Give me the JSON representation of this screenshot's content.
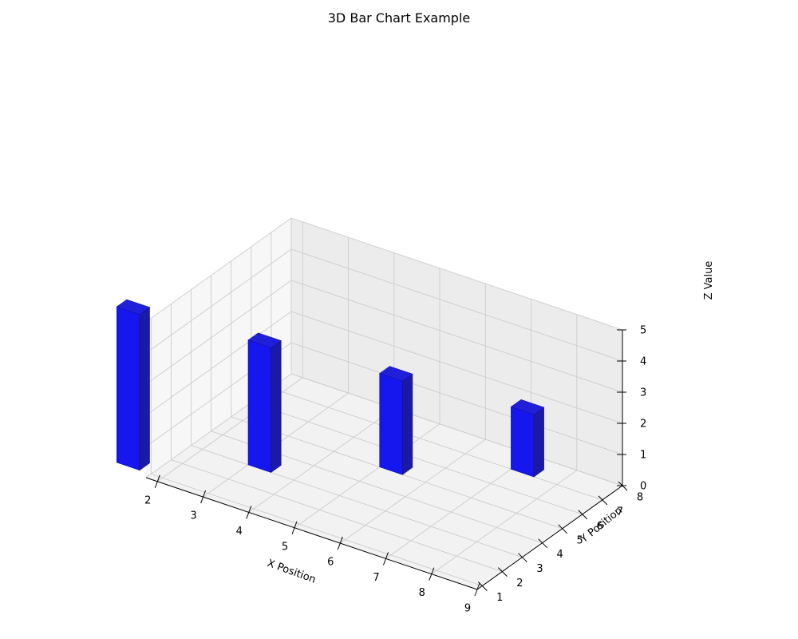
{
  "chart_data": {
    "type": "bar3d",
    "title": "3D Bar Chart Example",
    "xlabel": "X Position",
    "ylabel": "Y Position",
    "zlabel": "Z Value",
    "xlim": [
      1.75,
      9
    ],
    "ylim": [
      0.75,
      8
    ],
    "zlim": [
      0,
      5
    ],
    "xticks": [
      "2",
      "3",
      "4",
      "5",
      "6",
      "7",
      "8",
      "9"
    ],
    "yticks": [
      "1",
      "2",
      "3",
      "4",
      "5",
      "6",
      "7",
      "8"
    ],
    "zticks": [
      "0",
      "1",
      "2",
      "3",
      "4",
      "5"
    ],
    "bars": [
      {
        "x": 1,
        "y": 1,
        "z": 0,
        "dx": 0.5,
        "dy": 0.5,
        "dz": 5
      },
      {
        "x": 3,
        "y": 3,
        "z": 0,
        "dx": 0.5,
        "dy": 0.5,
        "dz": 4
      },
      {
        "x": 5,
        "y": 5,
        "z": 0,
        "dx": 0.5,
        "dy": 0.5,
        "dz": 3
      },
      {
        "x": 7,
        "y": 7,
        "z": 0,
        "dx": 0.5,
        "dy": 0.5,
        "dz": 2
      }
    ],
    "bar_color": "#0000ff",
    "grid": true
  }
}
